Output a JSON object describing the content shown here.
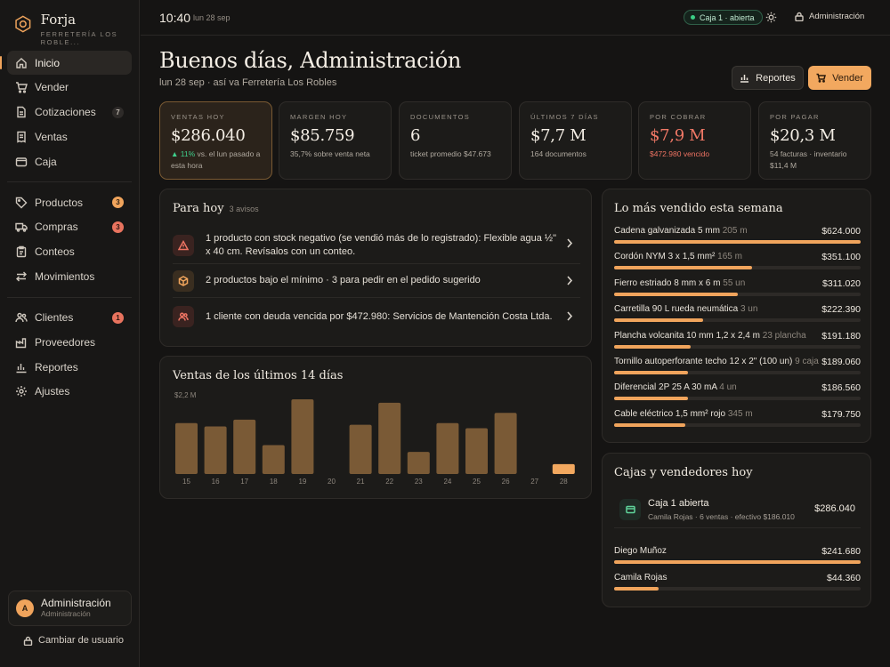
{
  "brand": {
    "name": "Forja",
    "subtitle": "FERRETERÍA LOS ROBLE..."
  },
  "nav": {
    "items": [
      {
        "label": "Inicio",
        "icon": "home-icon",
        "active": true
      },
      {
        "label": "Vender",
        "icon": "cart-icon"
      },
      {
        "label": "Cotizaciones",
        "icon": "document-icon",
        "badge": "7"
      },
      {
        "label": "Ventas",
        "icon": "receipt-icon"
      },
      {
        "label": "Caja",
        "icon": "wallet-icon"
      },
      {
        "label": "Productos",
        "icon": "tag-icon",
        "badge": "3"
      },
      {
        "label": "Compras",
        "icon": "truck-icon",
        "badge": "3"
      },
      {
        "label": "Conteos",
        "icon": "clipboard-icon"
      },
      {
        "label": "Movimientos",
        "icon": "arrows-icon"
      },
      {
        "label": "Clientes",
        "icon": "users-icon",
        "badge": "1"
      },
      {
        "label": "Proveedores",
        "icon": "factory-icon"
      },
      {
        "label": "Reportes",
        "icon": "chart-icon"
      },
      {
        "label": "Ajustes",
        "icon": "gear-icon"
      }
    ]
  },
  "user": {
    "initial": "A",
    "name": "Administración",
    "role": "Administración",
    "switch_label": "Cambiar de usuario"
  },
  "topbar": {
    "time": "10:40",
    "date": "lun 28 sep",
    "caja_status": "Caja 1 · abierta",
    "admin_label": "Administración"
  },
  "header": {
    "greeting": "Buenos días, Administración",
    "subtitle": "lun 28 sep · así va Ferretería Los Robles",
    "reportes_label": "Reportes",
    "vender_label": "Vender"
  },
  "kpis": [
    {
      "label": "VENTAS HOY",
      "value": "$286.040",
      "delta": "▲ 11%",
      "sub": " vs. el lun pasado a esta hora"
    },
    {
      "label": "MARGEN HOY",
      "value": "$85.759",
      "sub": "35,7% sobre venta neta"
    },
    {
      "label": "DOCUMENTOS",
      "value": "6",
      "sub": "ticket promedio $47.673"
    },
    {
      "label": "ÚLTIMOS 7 DÍAS",
      "value": "$7,7 M",
      "sub": "164 documentos"
    },
    {
      "label": "POR COBRAR",
      "value": "$7,9 M",
      "sub": "$472.980 vencido"
    },
    {
      "label": "POR PAGAR",
      "value": "$20,3 M",
      "sub": "54 facturas · inventario $11,4 M"
    }
  ],
  "para_hoy": {
    "title": "Para hoy",
    "count": "3 avisos",
    "alerts": [
      {
        "icon": "warning-icon",
        "text": "1 producto con stock negativo (se vendió más de lo registrado): Flexible agua ½\" x 40 cm. Revísalos con un conteo."
      },
      {
        "icon": "box-icon",
        "text": "2 productos bajo el mínimo · 3 para pedir en el pedido sugerido"
      },
      {
        "icon": "users-icon",
        "text": "1 cliente con deuda vencida por $472.980: Servicios de Mantención Costa Ltda."
      }
    ]
  },
  "sales_chart": {
    "title": "Ventas de los últimos 14 días",
    "max_label": "$2,2 M"
  },
  "chart_data": {
    "type": "bar",
    "title": "Ventas de los últimos 14 días",
    "categories": [
      "15",
      "16",
      "17",
      "18",
      "19",
      "20",
      "21",
      "22",
      "23",
      "24",
      "25",
      "26",
      "27",
      "28"
    ],
    "values": [
      1.5,
      1.4,
      1.6,
      0.85,
      2.2,
      0,
      1.45,
      2.1,
      0.65,
      1.5,
      1.35,
      1.8,
      0,
      0.29
    ],
    "ylim": [
      0,
      2.2
    ],
    "units": "M",
    "highlight_last": true,
    "colors": {
      "bar": "#7a5a36",
      "highlight": "#f2a85f"
    }
  },
  "top_sellers": {
    "title": "Lo más vendido esta semana",
    "items": [
      {
        "name": "Cadena galvanizada 5 mm",
        "qty": "205 m",
        "amount": "$624.000",
        "fraction": 1.0
      },
      {
        "name": "Cordón NYM 3 x 1,5 mm²",
        "qty": "165 m",
        "amount": "$351.100",
        "fraction": 0.56
      },
      {
        "name": "Fierro estriado 8 mm x 6 m",
        "qty": "55 un",
        "amount": "$311.020",
        "fraction": 0.5
      },
      {
        "name": "Carretilla 90 L rueda neumática",
        "qty": "3 un",
        "amount": "$222.390",
        "fraction": 0.36
      },
      {
        "name": "Plancha volcanita 10 mm 1,2 x 2,4 m",
        "qty": "23 plancha",
        "amount": "$191.180",
        "fraction": 0.31
      },
      {
        "name": "Tornillo autoperforante techo 12 x 2\" (100 un)",
        "qty": "9 caja",
        "amount": "$189.060",
        "fraction": 0.3
      },
      {
        "name": "Diferencial 2P 25 A 30 mA",
        "qty": "4 un",
        "amount": "$186.560",
        "fraction": 0.3
      },
      {
        "name": "Cable eléctrico 1,5 mm² rojo",
        "qty": "345 m",
        "amount": "$179.750",
        "fraction": 0.29
      }
    ]
  },
  "cajas": {
    "title": "Cajas y vendedores hoy",
    "caja": {
      "name": "Caja 1 abierta",
      "detail": "Camila Rojas · 6 ventas · efectivo $186.010",
      "amount": "$286.040"
    },
    "vendors": [
      {
        "name": "Diego Muñoz",
        "amount": "$241.680",
        "fraction": 1.0
      },
      {
        "name": "Camila Rojas",
        "amount": "$44.360",
        "fraction": 0.18
      }
    ]
  }
}
